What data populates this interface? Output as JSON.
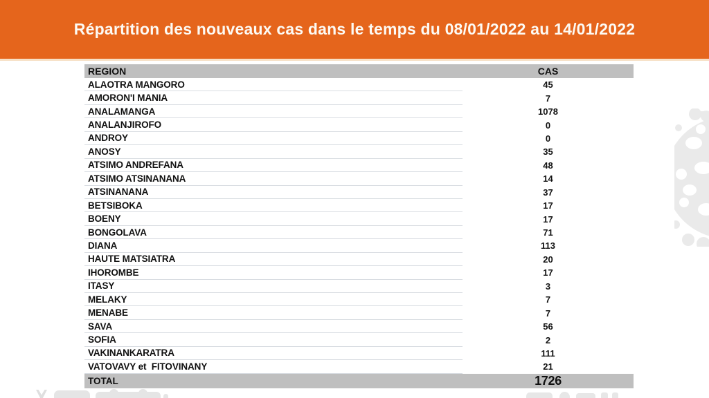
{
  "banner": {
    "title": "Répartition des nouveaux cas dans le temps du 08/01/2022 au 14/01/2022",
    "bg_color": "#E5651C",
    "text_color": "#FDFAF4"
  },
  "table": {
    "headers": {
      "region": "REGION",
      "cas": "CAS"
    },
    "rows": [
      {
        "region": "ALAOTRA MANGORO",
        "cas": "45"
      },
      {
        "region": "AMORON'I MANIA",
        "cas": "7"
      },
      {
        "region": "ANALAMANGA",
        "cas": "1078"
      },
      {
        "region": "ANALANJIROFO",
        "cas": "0"
      },
      {
        "region": "ANDROY",
        "cas": "0"
      },
      {
        "region": "ANOSY",
        "cas": "35"
      },
      {
        "region": "ATSIMO ANDREFANA",
        "cas": "48"
      },
      {
        "region": "ATSIMO ATSINANANA",
        "cas": "14"
      },
      {
        "region": "ATSINANANA",
        "cas": "37"
      },
      {
        "region": "BETSIBOKA",
        "cas": "17"
      },
      {
        "region": "BOENY",
        "cas": "17"
      },
      {
        "region": "BONGOLAVA",
        "cas": "71"
      },
      {
        "region": "DIANA",
        "cas": "113"
      },
      {
        "region": "HAUTE MATSIATRA",
        "cas": "20"
      },
      {
        "region": "IHOROMBE",
        "cas": "17"
      },
      {
        "region": "ITASY",
        "cas": "3"
      },
      {
        "region": "MELAKY",
        "cas": "7"
      },
      {
        "region": "MENABE",
        "cas": "7"
      },
      {
        "region": "SAVA",
        "cas": "56"
      },
      {
        "region": "SOFIA",
        "cas": "2"
      },
      {
        "region": "VAKINANKARATRA",
        "cas": "111"
      },
      {
        "region": "VATOVAVY et  FITOVINANY",
        "cas": "21"
      }
    ],
    "total": {
      "label": "TOTAL",
      "value": "1726"
    },
    "header_bg": "#BFBFBF",
    "row_line_color": "#D9DDE2"
  },
  "chart_data": {
    "type": "table",
    "title": "Répartition des nouveaux cas dans le temps du 08/01/2022 au 14/01/2022",
    "columns": [
      "REGION",
      "CAS"
    ],
    "categories": [
      "ALAOTRA MANGORO",
      "AMORON'I MANIA",
      "ANALAMANGA",
      "ANALANJIROFO",
      "ANDROY",
      "ANOSY",
      "ATSIMO ANDREFANA",
      "ATSIMO ATSINANANA",
      "ATSINANANA",
      "BETSIBOKA",
      "BOENY",
      "BONGOLAVA",
      "DIANA",
      "HAUTE MATSIATRA",
      "IHOROMBE",
      "ITASY",
      "MELAKY",
      "MENABE",
      "SAVA",
      "SOFIA",
      "VAKINANKARATRA",
      "VATOVAVY et FITOVINANY"
    ],
    "values": [
      45,
      7,
      1078,
      0,
      0,
      35,
      48,
      14,
      37,
      17,
      17,
      71,
      113,
      20,
      17,
      3,
      7,
      7,
      56,
      2,
      111,
      21
    ],
    "total": 1726
  },
  "decorations": {
    "virus_icon_color": "#EAEAEA",
    "bottom_shapes_color": "#E5E5E5"
  }
}
